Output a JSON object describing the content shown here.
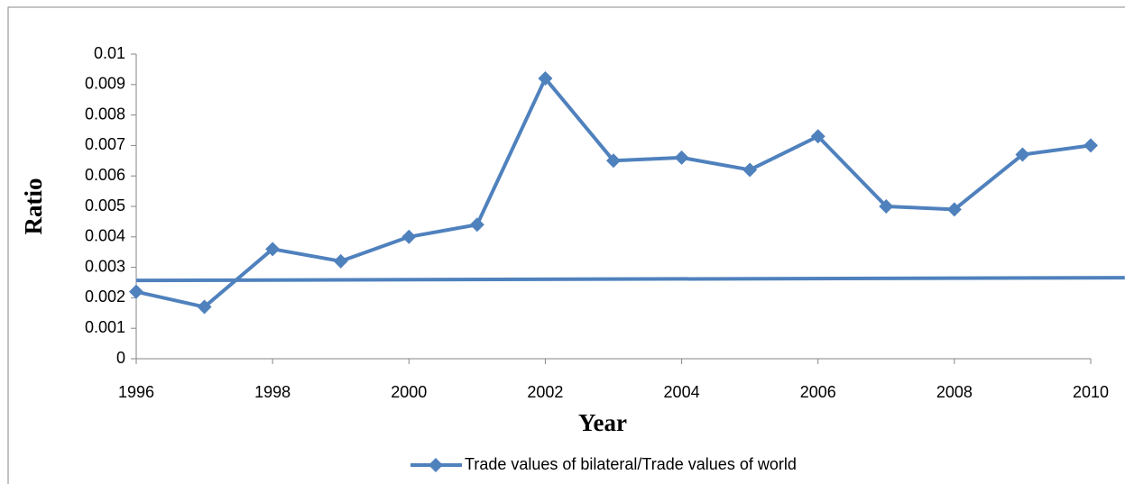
{
  "chart_data": {
    "type": "line",
    "x": [
      1996,
      1997,
      1998,
      1999,
      2000,
      2001,
      2002,
      2003,
      2004,
      2005,
      2006,
      2007,
      2008,
      2009,
      2010
    ],
    "series": [
      {
        "name": "Trade values of  bilateral/Trade values of world",
        "color": "#4f81bd",
        "values": [
          0.0022,
          0.0017,
          0.0036,
          0.0032,
          0.004,
          0.0044,
          0.0092,
          0.0065,
          0.0066,
          0.0062,
          0.0073,
          0.005,
          0.0049,
          0.0067,
          0.007
        ]
      }
    ],
    "trend": {
      "color": "#4f81bd",
      "x": [
        1996,
        2010.5
      ],
      "values": [
        0.00257,
        0.00266
      ]
    },
    "xlabel": "Year",
    "ylabel": "Ratio",
    "xlim": [
      1996,
      2010
    ],
    "xticks": [
      1996,
      1998,
      2000,
      2002,
      2004,
      2006,
      2008,
      2010
    ],
    "ylim": [
      0,
      0.01
    ],
    "yticks": [
      0,
      0.001,
      0.002,
      0.003,
      0.004,
      0.005,
      0.006,
      0.007,
      0.008,
      0.009,
      0.01
    ],
    "grid": false,
    "legend": "bottom"
  }
}
